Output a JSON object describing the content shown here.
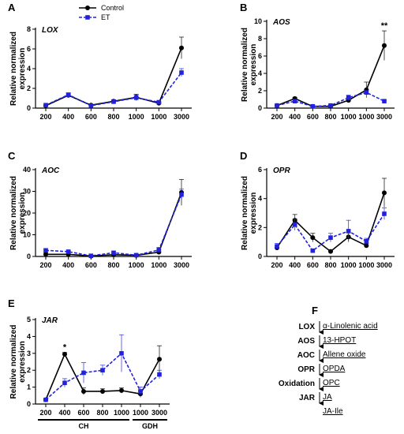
{
  "legend": {
    "control": "Control",
    "et": "ET"
  },
  "colors": {
    "control": "#000000",
    "et": "#2222dd"
  },
  "chart_data": [
    {
      "type": "line",
      "panel": "A",
      "gene": "LOX",
      "categories": [
        "200",
        "400",
        "600",
        "800",
        "1000",
        "1000",
        "3000"
      ],
      "ylabel": "Relative normalized expression",
      "ylim": [
        0,
        8
      ],
      "yticks": [
        0,
        2,
        4,
        6,
        8
      ],
      "series": [
        {
          "name": "Control",
          "values": [
            0.25,
            1.3,
            0.3,
            0.7,
            1.1,
            0.5,
            6.1
          ],
          "err": [
            0.05,
            0.2,
            0.05,
            0.15,
            0.3,
            0.1,
            1.1
          ]
        },
        {
          "name": "ET",
          "values": [
            0.3,
            1.35,
            0.25,
            0.65,
            1.05,
            0.6,
            3.6
          ],
          "err": [
            0.05,
            0.2,
            0.05,
            0.15,
            0.3,
            0.1,
            0.4
          ]
        }
      ],
      "annotations": []
    },
    {
      "type": "line",
      "panel": "B",
      "gene": "AOS",
      "categories": [
        "200",
        "400",
        "600",
        "800",
        "1000",
        "1000",
        "3000"
      ],
      "ylabel": "Relative normalized expression",
      "ylim": [
        0,
        10
      ],
      "yticks": [
        0,
        2,
        4,
        6,
        8,
        10
      ],
      "series": [
        {
          "name": "Control",
          "values": [
            0.3,
            1.1,
            0.2,
            0.2,
            0.9,
            2.1,
            7.2
          ],
          "err": [
            0.05,
            0.15,
            0.05,
            0.05,
            0.2,
            0.9,
            1.7
          ]
        },
        {
          "name": "ET",
          "values": [
            0.3,
            0.8,
            0.2,
            0.3,
            1.2,
            1.8,
            0.8
          ],
          "err": [
            0.05,
            0.15,
            0.05,
            0.05,
            0.3,
            0.2,
            0.1
          ]
        }
      ],
      "annotations": [
        {
          "index": 6,
          "text": "**"
        }
      ]
    },
    {
      "type": "line",
      "panel": "C",
      "gene": "AOC",
      "categories": [
        "200",
        "400",
        "600",
        "800",
        "1000",
        "1000",
        "3000"
      ],
      "ylabel": "Relative normalized expression",
      "ylim": [
        0,
        40
      ],
      "yticks": [
        0,
        10,
        20,
        30,
        40
      ],
      "series": [
        {
          "name": "Control",
          "values": [
            1.0,
            1.0,
            0.2,
            0.8,
            0.5,
            2.0,
            29.5
          ],
          "err": [
            0.8,
            0.5,
            0.3,
            0.5,
            0.5,
            1.0,
            6.0
          ]
        },
        {
          "name": "ET",
          "values": [
            2.8,
            2.2,
            0.3,
            1.7,
            0.6,
            3.0,
            28.5
          ],
          "err": [
            0.8,
            0.6,
            0.3,
            0.6,
            0.5,
            1.2,
            2.5
          ]
        }
      ],
      "annotations": []
    },
    {
      "type": "line",
      "panel": "D",
      "gene": "OPR",
      "categories": [
        "200",
        "400",
        "600",
        "800",
        "1000",
        "1000",
        "3000"
      ],
      "ylabel": "Relative normalized expression",
      "ylim": [
        0,
        6
      ],
      "yticks": [
        0,
        2,
        4,
        6
      ],
      "series": [
        {
          "name": "Control",
          "values": [
            0.6,
            2.5,
            1.3,
            0.35,
            1.35,
            0.75,
            4.4
          ],
          "err": [
            0.15,
            0.4,
            0.3,
            0.1,
            0.3,
            0.15,
            1.0
          ]
        },
        {
          "name": "ET",
          "values": [
            0.7,
            2.2,
            0.4,
            1.3,
            1.75,
            1.05,
            2.95
          ],
          "err": [
            0.2,
            0.4,
            0.1,
            0.3,
            0.75,
            0.2,
            0.4
          ]
        }
      ],
      "annotations": []
    },
    {
      "type": "line",
      "panel": "E",
      "gene": "JAR",
      "categories": [
        "200",
        "400",
        "600",
        "800",
        "1000",
        "1000",
        "3000"
      ],
      "ylabel": "Relative normalized expression",
      "ylim": [
        0,
        5
      ],
      "yticks": [
        0,
        1,
        2,
        3,
        4,
        5
      ],
      "groups": [
        {
          "label": "CH",
          "from": 0,
          "to": 4
        },
        {
          "label": "GDH",
          "from": 5,
          "to": 6
        }
      ],
      "series": [
        {
          "name": "Control",
          "values": [
            0.25,
            2.95,
            0.75,
            0.75,
            0.8,
            0.6,
            2.65
          ],
          "err": [
            0.05,
            0.1,
            0.2,
            0.15,
            0.15,
            0.2,
            0.8
          ]
        },
        {
          "name": "ET",
          "values": [
            0.25,
            1.25,
            1.85,
            2.0,
            3.0,
            0.75,
            1.75
          ],
          "err": [
            0.05,
            0.25,
            0.6,
            0.3,
            1.1,
            0.25,
            0.25
          ]
        }
      ],
      "annotations": [
        {
          "index": 1,
          "text": "*"
        }
      ]
    }
  ],
  "pathway": {
    "letter": "F",
    "steps": [
      {
        "enzyme": "LOX",
        "metabolite": "α-Linolenic acid"
      },
      {
        "enzyme": "AOS",
        "metabolite": "13-HPOT"
      },
      {
        "enzyme": "AOC",
        "metabolite": "Allene oxide"
      },
      {
        "enzyme": "OPR",
        "metabolite": "OPDA"
      },
      {
        "enzyme": "Oxidation",
        "metabolite": "OPC"
      },
      {
        "enzyme": "JAR",
        "metabolite": "JA"
      },
      {
        "enzyme": "",
        "metabolite": "JA-Ile"
      }
    ]
  }
}
